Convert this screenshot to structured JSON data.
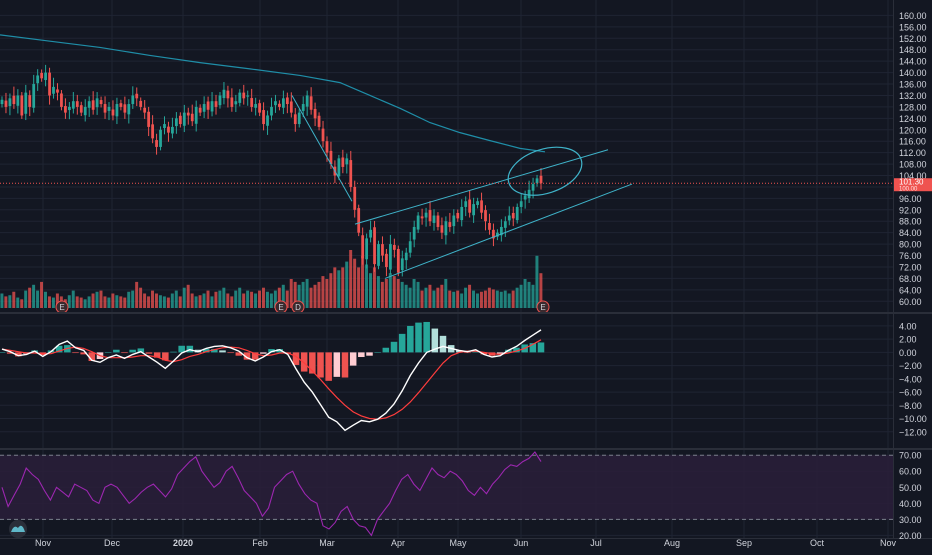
{
  "theme": {
    "background": "#131722",
    "grid": "#1f2433",
    "axis_text": "#d1d4dc",
    "up": "#26a69a",
    "down": "#ef5350",
    "ma_line": "#1f8ea8",
    "trend_line": "#3fb3c9",
    "macd_line": "#ffffff",
    "signal_line": "#ff3d3d",
    "rsi_line": "#9c27b0",
    "rsi_band": "#2a1f3a",
    "price_tag": "#ef5350"
  },
  "price_tag": {
    "value": "101.30",
    "sub": "100.00"
  },
  "chart_data": [
    {
      "id": "price",
      "type": "candlestick",
      "ylim": [
        58,
        164
      ],
      "yticks": [
        60,
        64,
        68,
        72,
        76,
        80,
        84,
        88,
        92,
        96,
        100,
        104,
        108,
        112,
        116,
        120,
        124,
        128,
        132,
        136,
        140,
        144,
        148,
        152,
        156,
        160
      ],
      "xticks": [
        "Nov",
        "Dec",
        "2020",
        "Feb",
        "Mar",
        "Apr",
        "May",
        "Jun",
        "Jul",
        "Aug",
        "Sep",
        "Oct",
        "Nov"
      ],
      "last_close": 101.3,
      "moving_average": [
        [
          0,
          153.2
        ],
        [
          50,
          151
        ],
        [
          100,
          148.8
        ],
        [
          150,
          146
        ],
        [
          200,
          143.5
        ],
        [
          250,
          141.3
        ],
        [
          300,
          139
        ],
        [
          340,
          136.5
        ],
        [
          370,
          132
        ],
        [
          400,
          127.5
        ],
        [
          430,
          122.5
        ],
        [
          460,
          119
        ],
        [
          490,
          116.2
        ],
        [
          520,
          113.5
        ],
        [
          545,
          112.3
        ]
      ],
      "closes": [
        130.5,
        128,
        131,
        129,
        132,
        125,
        133,
        128,
        136,
        139,
        138,
        140,
        132,
        135,
        133,
        128,
        126,
        128,
        130,
        128,
        126,
        128,
        130,
        127,
        131,
        129,
        126,
        128,
        125,
        129,
        128,
        126,
        129,
        132,
        131,
        128,
        126,
        121,
        117,
        114,
        120,
        122,
        119,
        121,
        124,
        122,
        126,
        125,
        123,
        128,
        126,
        129,
        127,
        130,
        128,
        132,
        134,
        131,
        128,
        130,
        133,
        131,
        132,
        128,
        129,
        126,
        122,
        125,
        128,
        130,
        128,
        131,
        129,
        126,
        122,
        126,
        129,
        132,
        127,
        124,
        121,
        116,
        112,
        108,
        104,
        110,
        107,
        110,
        100,
        92,
        84,
        75,
        82,
        85,
        73,
        80,
        76,
        72,
        80,
        78,
        70,
        75,
        77,
        81,
        86,
        90,
        89,
        91,
        88,
        90,
        86,
        84,
        88,
        86,
        90,
        89,
        93,
        95,
        91,
        94,
        95,
        91,
        88,
        85,
        82,
        84,
        86,
        88,
        90,
        89,
        93,
        95,
        97,
        99,
        101,
        103,
        101.3
      ],
      "annotations": [
        {
          "type": "trend_line",
          "points": [
            [
              292,
              132
            ],
            [
              352,
              95
            ]
          ]
        },
        {
          "type": "trend_line",
          "points": [
            [
              355,
              87
            ],
            [
              608,
              113
            ]
          ]
        },
        {
          "type": "trend_line",
          "points": [
            [
              385,
              68
            ],
            [
              632,
              101
            ]
          ]
        },
        {
          "type": "ellipse",
          "center": [
            545,
            105.5
          ],
          "label": ""
        }
      ],
      "event_markers": [
        {
          "x": 62,
          "label": "E"
        },
        {
          "x": 281,
          "label": "E"
        },
        {
          "x": 298,
          "label": "D"
        },
        {
          "x": 543,
          "label": "E"
        }
      ]
    },
    {
      "id": "volume",
      "type": "bar",
      "values": [
        0.25,
        0.2,
        0.22,
        0.28,
        0.18,
        0.15,
        0.3,
        0.35,
        0.4,
        0.3,
        0.45,
        0.28,
        0.2,
        0.18,
        0.25,
        0.2,
        0.15,
        0.22,
        0.3,
        0.2,
        0.18,
        0.15,
        0.2,
        0.25,
        0.28,
        0.3,
        0.2,
        0.18,
        0.25,
        0.22,
        0.2,
        0.18,
        0.28,
        0.3,
        0.45,
        0.35,
        0.25,
        0.2,
        0.3,
        0.25,
        0.22,
        0.2,
        0.18,
        0.25,
        0.3,
        0.2,
        0.35,
        0.4,
        0.25,
        0.2,
        0.22,
        0.25,
        0.3,
        0.2,
        0.28,
        0.3,
        0.35,
        0.25,
        0.2,
        0.3,
        0.35,
        0.25,
        0.3,
        0.28,
        0.25,
        0.3,
        0.35,
        0.28,
        0.25,
        0.3,
        0.35,
        0.4,
        0.3,
        0.5,
        0.45,
        0.4,
        0.45,
        0.5,
        0.35,
        0.4,
        0.45,
        0.55,
        0.5,
        0.6,
        0.7,
        0.65,
        0.7,
        0.8,
        1.0,
        0.85,
        0.7,
        0.9,
        0.75,
        0.6,
        0.7,
        0.55,
        0.45,
        0.5,
        0.6,
        0.55,
        0.5,
        0.45,
        0.4,
        0.35,
        0.5,
        0.45,
        0.3,
        0.35,
        0.4,
        0.3,
        0.35,
        0.4,
        0.5,
        0.3,
        0.28,
        0.3,
        0.25,
        0.35,
        0.4,
        0.3,
        0.25,
        0.28,
        0.3,
        0.35,
        0.32,
        0.3,
        0.28,
        0.3,
        0.25,
        0.3,
        0.35,
        0.4,
        0.5,
        0.45,
        0.4,
        0.9,
        0.6
      ]
    },
    {
      "id": "macd",
      "type": "line",
      "ylim": [
        -14,
        5.5
      ],
      "yticks": [
        4,
        2,
        0,
        -2,
        -4,
        -6,
        -8,
        -10,
        -12
      ],
      "series": [
        {
          "key": "macd",
          "values": [
            0.5,
            0.1,
            -0.5,
            -0.3,
            0.2,
            -0.6,
            0.1,
            1.2,
            1.7,
            0.7,
            0.3,
            -1.2,
            -1.5,
            -0.8,
            -0.4,
            -0.9,
            -0.3,
            0.1,
            -0.7,
            -1.5,
            -2.4,
            -1.3,
            -0.1,
            0.4,
            0.1,
            0.6,
            0.9,
            1.0,
            0.7,
            0.2,
            -0.8,
            -1.3,
            -0.7,
            0.1,
            0.4,
            -0.3,
            -2.5,
            -4.5,
            -6.0,
            -7.9,
            -9.8,
            -10.5,
            -11.8,
            -11.0,
            -10.3,
            -10.5,
            -10.1,
            -9.2,
            -7.8,
            -5.8,
            -3.5,
            -1.6,
            0.0,
            0.5,
            0.9,
            0.6,
            0.3,
            0.1,
            0.4,
            -0.3,
            -0.7,
            -0.5,
            0.3,
            0.9,
            1.8,
            2.6,
            3.4
          ]
        },
        {
          "key": "signal",
          "values": [
            0.5,
            0.3,
            0.1,
            -0.1,
            -0.1,
            -0.2,
            -0.2,
            0.2,
            0.6,
            0.8,
            0.6,
            0.1,
            -0.5,
            -0.8,
            -0.8,
            -0.8,
            -0.7,
            -0.5,
            -0.5,
            -0.7,
            -1.2,
            -1.4,
            -1.1,
            -0.6,
            -0.3,
            0.1,
            0.4,
            0.7,
            0.8,
            0.7,
            0.3,
            -0.2,
            -0.5,
            -0.4,
            -0.1,
            -0.1,
            -0.6,
            -1.6,
            -2.8,
            -4.1,
            -5.5,
            -6.8,
            -8.0,
            -9.0,
            -9.6,
            -10.0,
            -10.1,
            -9.9,
            -9.4,
            -8.6,
            -7.5,
            -6.1,
            -4.6,
            -3.1,
            -1.6,
            -0.5,
            0.0,
            0.2,
            0.2,
            0.0,
            -0.2,
            -0.3,
            -0.1,
            0.2,
            0.6,
            1.2,
            1.9
          ]
        }
      ]
    },
    {
      "id": "rsi",
      "type": "line",
      "ylim": [
        19,
        72
      ],
      "yticks": [
        70,
        60,
        50,
        40,
        30,
        20
      ],
      "band": [
        30,
        70
      ],
      "series": [
        {
          "key": "rsi",
          "values": [
            50,
            38,
            45,
            52,
            62,
            58,
            55,
            48,
            42,
            50,
            47,
            44,
            52,
            50,
            48,
            42,
            40,
            50,
            52,
            50,
            45,
            40,
            43,
            47,
            50,
            52,
            48,
            44,
            49,
            58,
            62,
            66,
            69,
            60,
            55,
            50,
            53,
            60,
            63,
            56,
            48,
            44,
            40,
            32,
            37,
            50,
            54,
            58,
            60,
            52,
            46,
            42,
            40,
            26,
            24,
            28,
            35,
            38,
            30,
            26,
            25,
            20,
            30,
            35,
            40,
            48,
            55,
            58,
            52,
            48,
            55,
            62,
            58,
            56,
            60,
            58,
            54,
            48,
            45,
            50,
            46,
            52,
            56,
            61,
            64,
            63,
            66,
            68,
            72,
            66
          ]
        }
      ]
    }
  ]
}
